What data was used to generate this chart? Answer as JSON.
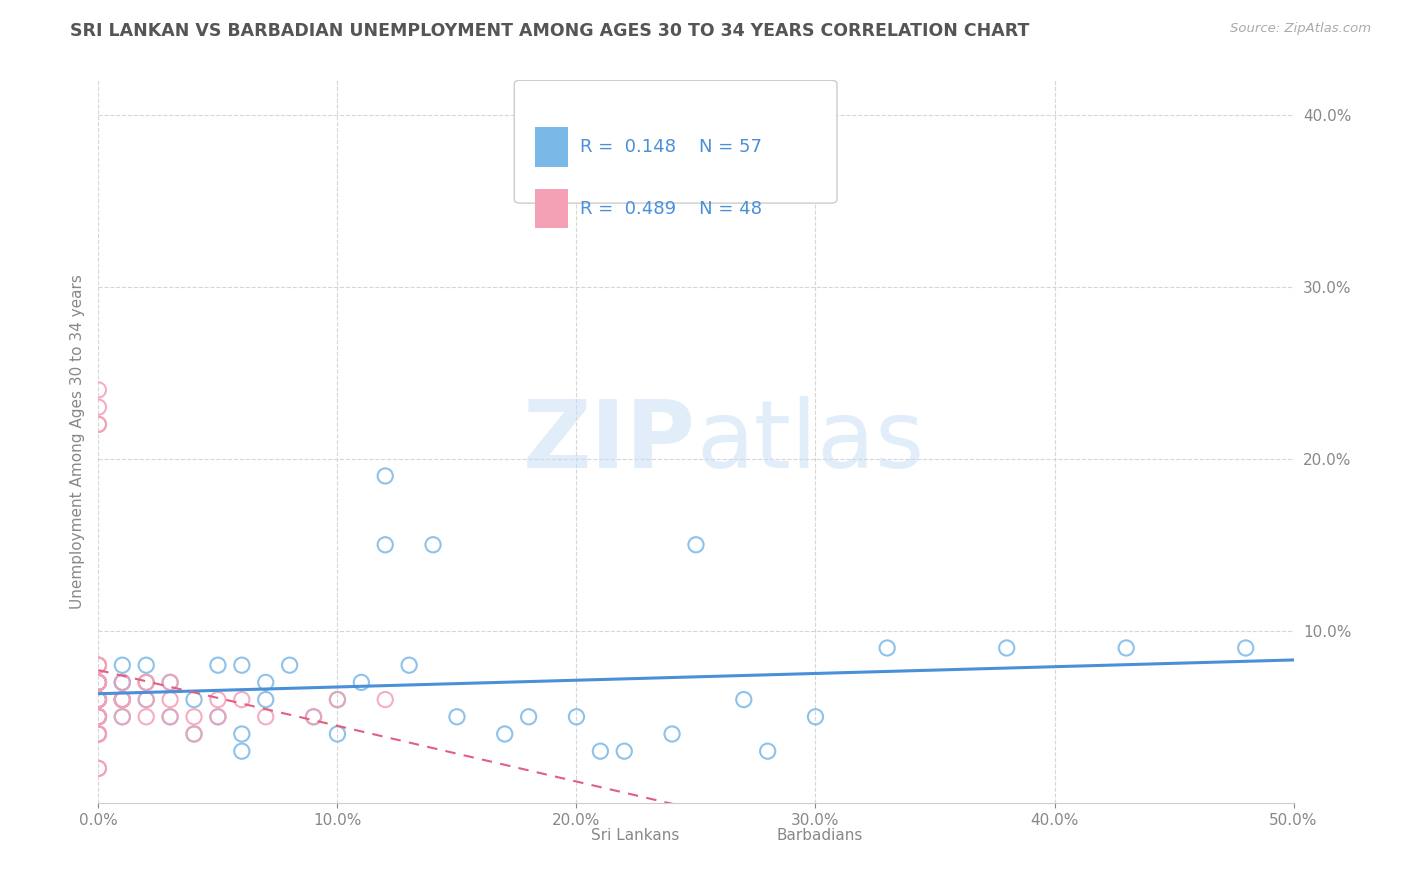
{
  "title": "SRI LANKAN VS BARBADIAN UNEMPLOYMENT AMONG AGES 30 TO 34 YEARS CORRELATION CHART",
  "source": "Source: ZipAtlas.com",
  "ylabel": "Unemployment Among Ages 30 to 34 years",
  "xlim": [
    0.0,
    0.5
  ],
  "ylim": [
    0.0,
    0.42
  ],
  "xticks": [
    0.0,
    0.1,
    0.2,
    0.3,
    0.4,
    0.5
  ],
  "xticklabels": [
    "0.0%",
    "10.0%",
    "20.0%",
    "30.0%",
    "40.0%",
    "50.0%"
  ],
  "yticks": [
    0.1,
    0.2,
    0.3,
    0.4
  ],
  "yticklabels": [
    "10.0%",
    "20.0%",
    "30.0%",
    "40.0%"
  ],
  "sri_lanka_color": "#7ab8e8",
  "barbadian_color": "#f4a0b5",
  "sri_lanka_R": 0.148,
  "sri_lanka_N": 57,
  "barbadian_R": 0.489,
  "barbadian_N": 48,
  "sri_lanka_line_color": "#4a90d9",
  "barbadian_line_color": "#e06080",
  "legend_label_1": "Sri Lankans",
  "legend_label_2": "Barbadians",
  "watermark_zip": "ZIP",
  "watermark_atlas": "atlas",
  "background_color": "#ffffff",
  "grid_color": "#cccccc",
  "title_color": "#555555",
  "axis_label_color": "#888888",
  "tick_label_color": "#4a90d9",
  "sri_lankans_x": [
    0.0,
    0.0,
    0.0,
    0.0,
    0.0,
    0.0,
    0.0,
    0.0,
    0.0,
    0.0,
    0.0,
    0.0,
    0.0,
    0.01,
    0.01,
    0.01,
    0.01,
    0.01,
    0.01,
    0.02,
    0.02,
    0.02,
    0.03,
    0.03,
    0.04,
    0.04,
    0.05,
    0.05,
    0.06,
    0.06,
    0.06,
    0.07,
    0.07,
    0.08,
    0.09,
    0.1,
    0.1,
    0.11,
    0.12,
    0.12,
    0.13,
    0.14,
    0.15,
    0.17,
    0.18,
    0.2,
    0.21,
    0.22,
    0.24,
    0.25,
    0.27,
    0.28,
    0.3,
    0.33,
    0.38,
    0.43,
    0.48
  ],
  "sri_lankans_y": [
    0.04,
    0.05,
    0.05,
    0.06,
    0.06,
    0.06,
    0.06,
    0.07,
    0.07,
    0.07,
    0.07,
    0.07,
    0.07,
    0.05,
    0.06,
    0.06,
    0.07,
    0.07,
    0.08,
    0.06,
    0.07,
    0.08,
    0.05,
    0.07,
    0.04,
    0.06,
    0.05,
    0.08,
    0.03,
    0.04,
    0.08,
    0.06,
    0.07,
    0.08,
    0.05,
    0.04,
    0.06,
    0.07,
    0.19,
    0.15,
    0.08,
    0.15,
    0.05,
    0.04,
    0.05,
    0.05,
    0.03,
    0.03,
    0.04,
    0.15,
    0.06,
    0.03,
    0.05,
    0.09,
    0.09,
    0.09,
    0.09
  ],
  "barbadians_x": [
    0.0,
    0.0,
    0.0,
    0.0,
    0.0,
    0.0,
    0.0,
    0.0,
    0.0,
    0.0,
    0.0,
    0.0,
    0.0,
    0.0,
    0.0,
    0.0,
    0.0,
    0.0,
    0.0,
    0.0,
    0.0,
    0.0,
    0.0,
    0.0,
    0.0,
    0.0,
    0.0,
    0.01,
    0.01,
    0.01,
    0.01,
    0.01,
    0.02,
    0.02,
    0.02,
    0.02,
    0.03,
    0.03,
    0.03,
    0.04,
    0.04,
    0.05,
    0.05,
    0.06,
    0.07,
    0.09,
    0.1,
    0.12
  ],
  "barbadians_y": [
    0.04,
    0.04,
    0.04,
    0.05,
    0.05,
    0.05,
    0.05,
    0.06,
    0.06,
    0.06,
    0.06,
    0.06,
    0.06,
    0.07,
    0.07,
    0.07,
    0.07,
    0.07,
    0.08,
    0.08,
    0.08,
    0.22,
    0.22,
    0.23,
    0.24,
    0.02,
    0.02,
    0.05,
    0.06,
    0.06,
    0.06,
    0.07,
    0.05,
    0.06,
    0.07,
    0.07,
    0.05,
    0.06,
    0.07,
    0.04,
    0.05,
    0.05,
    0.06,
    0.06,
    0.05,
    0.05,
    0.06,
    0.06
  ]
}
